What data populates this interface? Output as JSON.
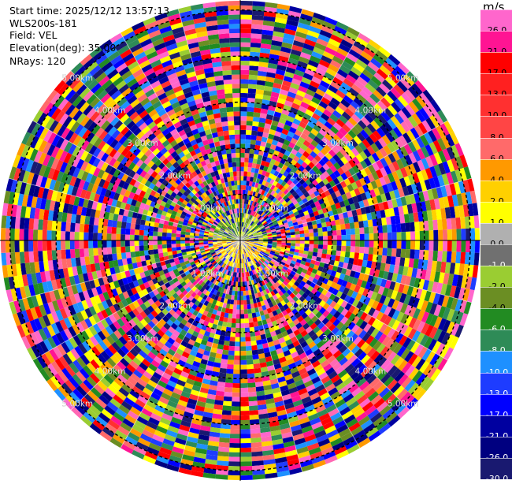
{
  "info": {
    "start_time": "Start time: 2025/12/12 13:57:13",
    "instrument": "WLS200s-181",
    "field": "Field: VEL",
    "elevation": "Elevation(deg): 35.00",
    "nrays": "NRays: 120"
  },
  "colorbar": {
    "unit": "m/s",
    "ticks": [
      "26.0",
      "21.0",
      "17.0",
      "13.0",
      "10.0",
      "8.0",
      "6.0",
      "4.0",
      "2.0",
      "1.0",
      "0.0",
      "-1.0",
      "-2.0",
      "-4.0",
      "-6.0",
      "-8.0",
      "-10.0",
      "-13.0",
      "-17.0",
      "-21.0",
      "-26.0",
      "-30.0"
    ],
    "colors": [
      "#ff66cc",
      "#ff1493",
      "#ff0000",
      "#ff2020",
      "#ff3030",
      "#ff4545",
      "#ff6a6a",
      "#ff9900",
      "#ffd000",
      "#ffff00",
      "#b0b0b0",
      "#707070",
      "#9acd32",
      "#6b8e23",
      "#228b22",
      "#2e8b57",
      "#1e90ff",
      "#1e3cff",
      "#0000ff",
      "#0000a0",
      "#000080",
      "#191970"
    ],
    "text_colors": [
      "#000",
      "#000",
      "#000",
      "#000",
      "#000",
      "#000",
      "#000",
      "#000",
      "#000",
      "#000",
      "#000",
      "#fff",
      "#000",
      "#000",
      "#fff",
      "#fff",
      "#fff",
      "#fff",
      "#fff",
      "#fff",
      "#fff",
      "#fff"
    ]
  },
  "chart_data": {
    "type": "ppi_polar",
    "field": "VEL",
    "units": "m/s",
    "nrays": 120,
    "range_rings_km": [
      1,
      2,
      3,
      4,
      5
    ],
    "range_ring_labels": [
      "1.00km",
      "2.00km",
      "3.00km",
      "4.00km",
      "5.00km"
    ],
    "vmin": -30.0,
    "vmax": 30.0,
    "palette": [
      "#ff66cc",
      "#ff1493",
      "#ff0000",
      "#ff3030",
      "#ff6a6a",
      "#ff9900",
      "#ffd000",
      "#ffff00",
      "#9acd32",
      "#6b8e23",
      "#228b22",
      "#2e8b57",
      "#1e90ff",
      "#1e3cff",
      "#0000ff",
      "#0000a0",
      "#000080",
      "#191970",
      "#ff69b4"
    ]
  }
}
